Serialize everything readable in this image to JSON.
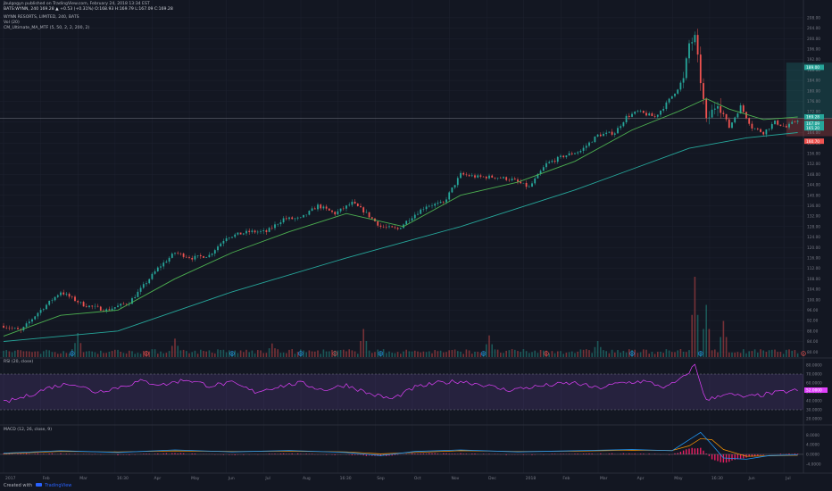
{
  "header": {
    "line1": "jbulgogyn published on TradingView.com, February 24, 2018 13:34 EST",
    "line2": "BATS:WYNN, 240 169.28 ▲ +0.53 (+0.31%) O:168.93 H:169.79 L:167.09 C:169.28",
    "symbol": "WYNN RESORTS, LIMITED, 240, BATS",
    "vol_label": "Vol (20)",
    "ma_label": "CM_Ultimate_MA_MTF (5, 50, 2, 2, 200, 2)"
  },
  "footer": {
    "created_with": "Created with",
    "brand": "TradingView"
  },
  "colors": {
    "bg": "#131722",
    "up": "#26a69a",
    "down": "#ef5350",
    "ma_fast": "#4caf50",
    "ma_slow": "#26a69a",
    "rsi": "#e040fb",
    "macd": "#2196f3",
    "signal": "#ff9800",
    "hist": "#e91e63"
  },
  "chart_data": [
    {
      "type": "candlestick",
      "panel": "price",
      "x_tick_labels": [
        "2017",
        "Feb",
        "Mar",
        "16:30",
        "Apr",
        "May",
        "Jun",
        "Jul",
        "Aug",
        "16:30",
        "Sep",
        "Oct",
        "Nov",
        "Dec",
        "2018",
        "Feb",
        "Mar",
        "Apr",
        "May",
        "16:30",
        "Jun",
        "Jul"
      ],
      "y_axis_labels": [
        "208.00",
        "204.00",
        "200.00",
        "196.00",
        "192.00",
        "188.00",
        "184.00",
        "180.00",
        "176.00",
        "172.00",
        "168.00",
        "164.00",
        "160.00",
        "156.00",
        "152.00",
        "148.00",
        "144.00",
        "140.00",
        "136.00",
        "132.00",
        "128.00",
        "124.00",
        "120.00",
        "116.00",
        "112.00",
        "108.00",
        "104.00",
        "100.00",
        "96.00",
        "92.00",
        "88.00",
        "84.00",
        "80.00"
      ],
      "ylim": [
        78,
        210
      ],
      "price_path": [
        [
          0,
          90
        ],
        [
          3,
          88
        ],
        [
          6,
          95
        ],
        [
          10,
          103
        ],
        [
          14,
          98
        ],
        [
          18,
          96
        ],
        [
          22,
          99
        ],
        [
          24,
          104
        ],
        [
          27,
          112
        ],
        [
          30,
          118
        ],
        [
          33,
          116
        ],
        [
          36,
          117
        ],
        [
          39,
          124
        ],
        [
          43,
          126
        ],
        [
          46,
          126
        ],
        [
          49,
          131
        ],
        [
          52,
          131
        ],
        [
          55,
          136
        ],
        [
          58,
          133
        ],
        [
          61,
          137
        ],
        [
          63,
          134
        ],
        [
          66,
          128
        ],
        [
          69,
          127
        ],
        [
          71,
          131
        ],
        [
          74,
          136
        ],
        [
          77,
          137
        ],
        [
          80,
          148
        ],
        [
          83,
          147
        ],
        [
          86,
          147
        ],
        [
          89,
          146
        ],
        [
          92,
          143
        ],
        [
          95,
          152
        ],
        [
          98,
          155
        ],
        [
          101,
          157
        ],
        [
          104,
          163
        ],
        [
          107,
          164
        ],
        [
          109,
          170
        ],
        [
          111,
          172
        ],
        [
          114,
          170
        ],
        [
          116,
          175
        ],
        [
          119,
          184
        ],
        [
          120,
          198
        ],
        [
          121,
          200
        ],
        [
          122,
          184
        ],
        [
          123,
          168
        ],
        [
          125,
          176
        ],
        [
          127,
          166
        ],
        [
          129,
          174
        ],
        [
          131,
          166
        ],
        [
          133,
          164
        ],
        [
          135,
          168
        ],
        [
          137,
          166
        ],
        [
          139,
          169
        ]
      ],
      "ma_fast_path": [
        [
          0,
          86
        ],
        [
          10,
          94
        ],
        [
          20,
          96
        ],
        [
          30,
          108
        ],
        [
          40,
          118
        ],
        [
          50,
          126
        ],
        [
          60,
          133
        ],
        [
          66,
          130
        ],
        [
          70,
          128
        ],
        [
          80,
          140
        ],
        [
          90,
          145
        ],
        [
          100,
          153
        ],
        [
          110,
          165
        ],
        [
          118,
          172
        ],
        [
          123,
          177
        ],
        [
          127,
          173
        ],
        [
          133,
          169
        ],
        [
          139,
          170
        ]
      ],
      "ma_slow_path": [
        [
          0,
          84
        ],
        [
          20,
          88
        ],
        [
          40,
          103
        ],
        [
          60,
          116
        ],
        [
          70,
          122
        ],
        [
          80,
          128
        ],
        [
          90,
          135
        ],
        [
          100,
          142
        ],
        [
          110,
          150
        ],
        [
          120,
          158
        ],
        [
          130,
          162
        ],
        [
          139,
          164
        ]
      ],
      "current_price": "169.28",
      "axis_tags": [
        {
          "price": "189.00",
          "color": "#26a69a",
          "y": 189
        },
        {
          "price": "169.28",
          "color": "#26a69a",
          "y": 170
        },
        {
          "price": "167.09",
          "color": "#26a69a",
          "y": 167.5
        },
        {
          "price": "165.20",
          "color": "#26a69a",
          "y": 165.8
        },
        {
          "price": "160.70",
          "color": "#ef5350",
          "y": 160.7
        }
      ],
      "position": {
        "entry": 169.5,
        "target": 190.8,
        "stop": 162.6,
        "target_label": "21.21 (12.50%) 1657.51",
        "entry_label_1": "8.47 → 35",
        "entry_label_2": "2.63",
        "stop_label": "8.05 (4.77%) 730.45"
      }
    },
    {
      "type": "bar",
      "panel": "volume",
      "name": "Vol (20)",
      "spikes": [
        [
          13,
          0.25
        ],
        [
          30,
          0.18
        ],
        [
          47,
          0.12
        ],
        [
          63,
          0.3
        ],
        [
          85,
          0.22
        ],
        [
          104,
          0.15
        ],
        [
          121,
          0.95
        ],
        [
          123,
          0.6
        ],
        [
          126,
          0.4
        ]
      ],
      "event_markers": [
        [
          12,
          "D"
        ],
        [
          25,
          "E"
        ],
        [
          40,
          "D"
        ],
        [
          52,
          "D"
        ],
        [
          58,
          "E"
        ],
        [
          66,
          "D"
        ],
        [
          84,
          "D"
        ],
        [
          95,
          "E"
        ],
        [
          110,
          "D"
        ],
        [
          122,
          "D"
        ],
        [
          140,
          "E"
        ],
        [
          168,
          "D"
        ]
      ]
    },
    {
      "type": "line",
      "panel": "rsi",
      "name": "RSI (20, close)",
      "y_axis_labels": [
        "80.0000",
        "70.0000",
        "60.0000",
        "50.0000",
        "40.0000",
        "30.0000",
        "20.0000"
      ],
      "ylim": [
        15,
        85
      ],
      "levels": [
        70,
        30
      ],
      "current": "52.0000",
      "path": [
        [
          0,
          38
        ],
        [
          4,
          45
        ],
        [
          8,
          55
        ],
        [
          12,
          60
        ],
        [
          16,
          50
        ],
        [
          20,
          55
        ],
        [
          24,
          62
        ],
        [
          28,
          58
        ],
        [
          32,
          64
        ],
        [
          36,
          57
        ],
        [
          40,
          60
        ],
        [
          44,
          50
        ],
        [
          48,
          56
        ],
        [
          52,
          60
        ],
        [
          56,
          52
        ],
        [
          60,
          58
        ],
        [
          64,
          48
        ],
        [
          68,
          42
        ],
        [
          72,
          55
        ],
        [
          76,
          60
        ],
        [
          80,
          62
        ],
        [
          84,
          58
        ],
        [
          88,
          52
        ],
        [
          92,
          55
        ],
        [
          96,
          58
        ],
        [
          100,
          60
        ],
        [
          104,
          54
        ],
        [
          108,
          60
        ],
        [
          112,
          62
        ],
        [
          116,
          55
        ],
        [
          119,
          66
        ],
        [
          121,
          80
        ],
        [
          123,
          40
        ],
        [
          126,
          48
        ],
        [
          130,
          44
        ],
        [
          134,
          48
        ],
        [
          139,
          52
        ]
      ]
    },
    {
      "type": "line",
      "panel": "macd",
      "name": "MACD (12, 26, close, 9)",
      "y_axis_labels": [
        "8.0000",
        "4.0000",
        "0.0000",
        "-4.0000"
      ],
      "ylim": [
        -7,
        11
      ],
      "macd_path": [
        [
          0,
          0.5
        ],
        [
          10,
          1.5
        ],
        [
          20,
          0.8
        ],
        [
          30,
          1.8
        ],
        [
          40,
          1
        ],
        [
          50,
          1.6
        ],
        [
          60,
          0.8
        ],
        [
          66,
          -0.5
        ],
        [
          72,
          1.2
        ],
        [
          80,
          1.8
        ],
        [
          90,
          1
        ],
        [
          100,
          1.5
        ],
        [
          110,
          2
        ],
        [
          117,
          1.5
        ],
        [
          120,
          6
        ],
        [
          122,
          9
        ],
        [
          124,
          4
        ],
        [
          126,
          -1.5
        ],
        [
          130,
          -2
        ],
        [
          134,
          -0.5
        ],
        [
          139,
          -0.2
        ]
      ],
      "signal_path": [
        [
          0,
          0.3
        ],
        [
          10,
          1.2
        ],
        [
          20,
          1
        ],
        [
          30,
          1.4
        ],
        [
          40,
          1.2
        ],
        [
          50,
          1.3
        ],
        [
          60,
          1
        ],
        [
          66,
          0.2
        ],
        [
          72,
          0.8
        ],
        [
          80,
          1.5
        ],
        [
          90,
          1.2
        ],
        [
          100,
          1.3
        ],
        [
          110,
          1.7
        ],
        [
          117,
          1.6
        ],
        [
          120,
          3.5
        ],
        [
          122,
          6.5
        ],
        [
          124,
          6
        ],
        [
          126,
          2
        ],
        [
          130,
          -0.8
        ],
        [
          134,
          -0.6
        ],
        [
          139,
          -0.4
        ]
      ]
    }
  ]
}
